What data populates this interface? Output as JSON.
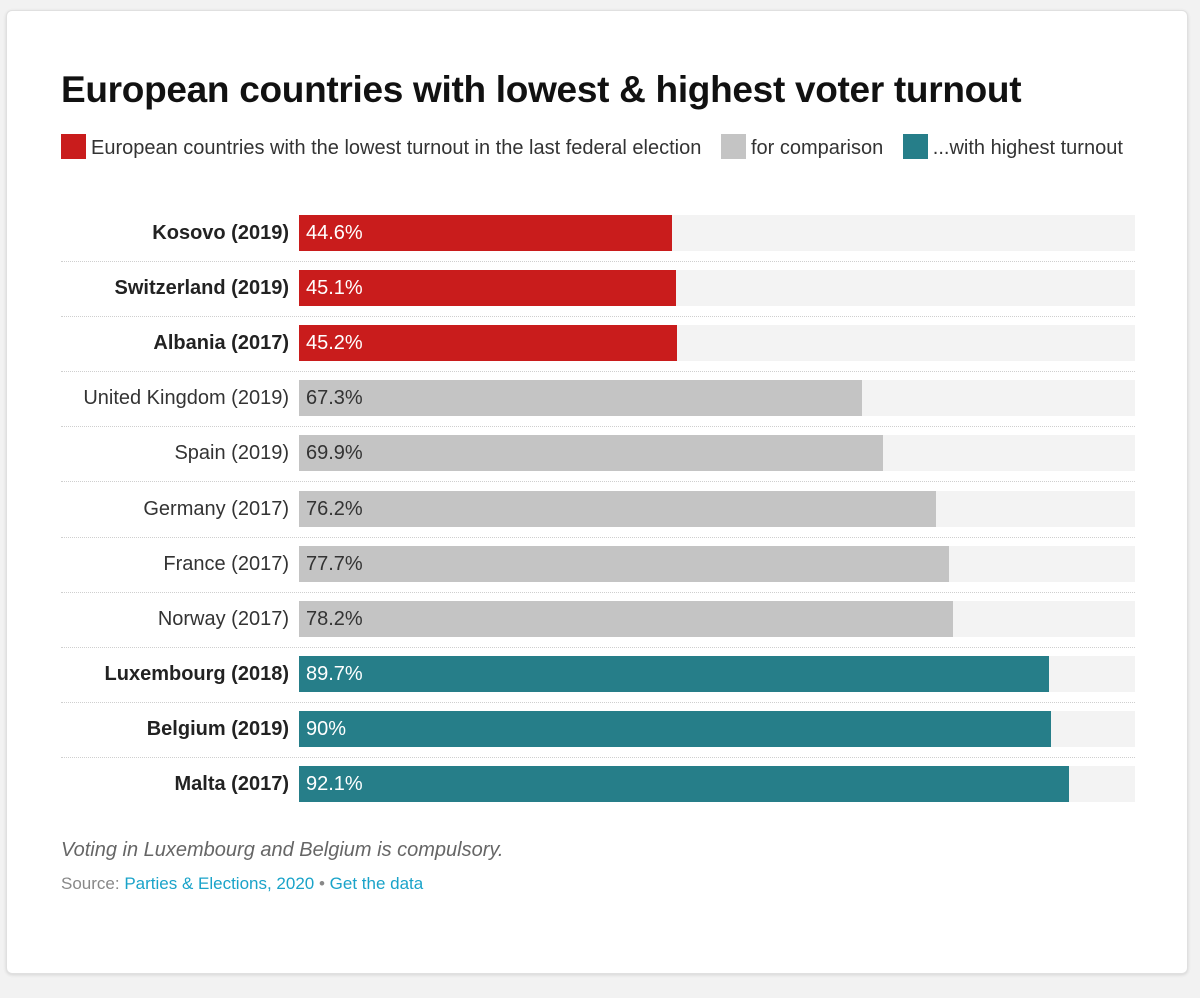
{
  "chart_data": {
    "type": "bar",
    "orientation": "horizontal",
    "title": "European countries with lowest & highest voter turnout",
    "legend": [
      {
        "label": "European countries with the lowest turnout in the last federal election",
        "color": "#c91c1c"
      },
      {
        "label": "for comparison",
        "color": "#c4c4c4"
      },
      {
        "label": "...with highest turnout",
        "color": "#267e89"
      }
    ],
    "xlim": [
      0,
      100
    ],
    "categories": [
      "Kosovo (2019)",
      "Switzerland (2019)",
      "Albania (2017)",
      "United Kingdom (2019)",
      "Spain (2019)",
      "Germany (2017)",
      "France (2017)",
      "Norway (2017)",
      "Luxembourg (2018)",
      "Belgium (2019)",
      "Malta (2017)"
    ],
    "values": [
      44.6,
      45.1,
      45.2,
      67.3,
      69.9,
      76.2,
      77.7,
      78.2,
      89.7,
      90,
      92.1
    ],
    "value_labels": [
      "44.6%",
      "45.1%",
      "45.2%",
      "67.3%",
      "69.9%",
      "76.2%",
      "77.7%",
      "78.2%",
      "89.7%",
      "90%",
      "92.1%"
    ],
    "groups": [
      "lowest",
      "lowest",
      "lowest",
      "comparison",
      "comparison",
      "comparison",
      "comparison",
      "comparison",
      "highest",
      "highest",
      "highest"
    ],
    "group_colors": {
      "lowest": "#c91c1c",
      "comparison": "#c4c4c4",
      "highest": "#267e89"
    },
    "group_text_colors": {
      "lowest": "#ffffff",
      "comparison": "#333333",
      "highest": "#ffffff"
    },
    "track_color": "#f3f3f3",
    "notes": "Voting in Luxembourg and Belgium is compulsory."
  },
  "footer": {
    "note": "Voting in Luxembourg and Belgium is compulsory.",
    "source_prefix": "Source: ",
    "source_link": "Parties & Elections, 2020",
    "separator": " • ",
    "data_link": "Get the data",
    "link_color": "#1aa3c9"
  }
}
